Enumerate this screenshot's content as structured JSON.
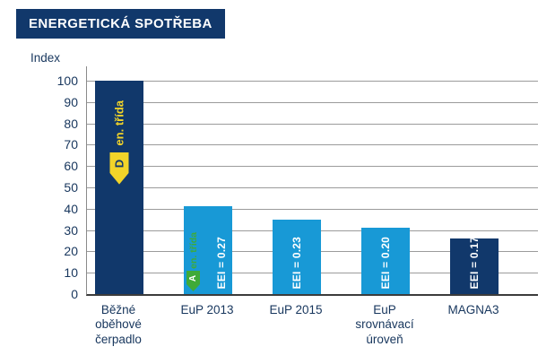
{
  "page": {
    "title": "ENERGETICKÁ SPOTŘEBA"
  },
  "chart_data": {
    "type": "bar",
    "title": "ENERGETICKÁ SPOTŘEBA",
    "ylabel": "Index",
    "xlabel": "",
    "ylim": [
      0,
      100
    ],
    "ytick_step": 10,
    "grid": "horizontal",
    "legend": "none",
    "categories": [
      "Běžné oběhové čerpadlo",
      "EuP 2013",
      "EuP 2015",
      "EuP srovnávací úroveň",
      "MAGNA3"
    ],
    "values": [
      100,
      41,
      35,
      31,
      26
    ],
    "bar_colors": [
      "#11386b",
      "#1899d6",
      "#1899d6",
      "#1899d6",
      "#11386b"
    ],
    "bar_value_labels": [
      "",
      "EEI = 0.27",
      "EEI = 0.23",
      "EEI = 0.20",
      "EEI = 0.17"
    ],
    "annotations": [
      {
        "bar_index": 0,
        "label": "en. třída",
        "energy_class": "D",
        "arrow_color": "#f2d429",
        "label_color": "#f2d429",
        "class_letter_color": "#11386b"
      },
      {
        "bar_index": 1,
        "label": "en. třída",
        "energy_class": "A",
        "arrow_color": "#3faa38",
        "label_color": "#3faa38",
        "class_letter_color": "#ffffff"
      }
    ],
    "colors": {
      "axis": "#8a8a8a",
      "baseline": "#3c3c3c",
      "gridline": "#9b9b9b",
      "text": "#17365d",
      "dark_bar": "#11386b",
      "light_bar": "#1899d6"
    }
  }
}
